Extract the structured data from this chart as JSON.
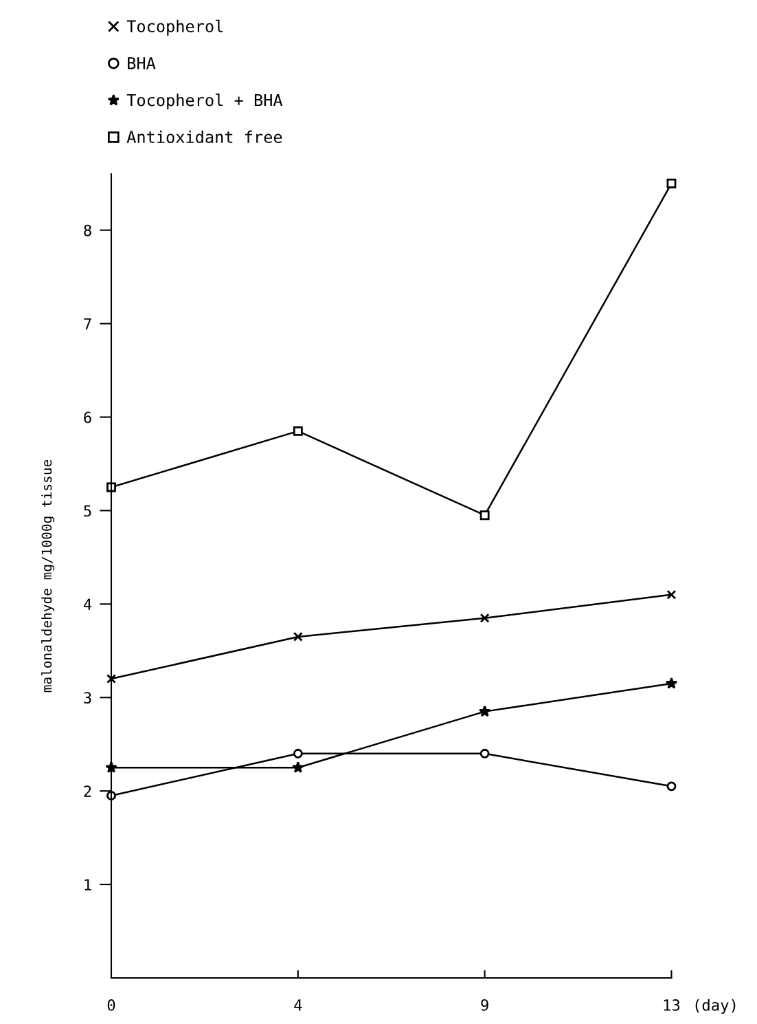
{
  "chart_data": {
    "type": "line",
    "ylabel": "malonaldehyde mg/1000g tissue",
    "xlabel": "(day)",
    "categories": [
      "0",
      "4",
      "9",
      "13"
    ],
    "series": [
      {
        "name": "Tocopherol",
        "color": "#000000",
        "marker": "cross",
        "values": [
          3.2,
          3.65,
          3.85,
          4.1
        ]
      },
      {
        "name": "BHA",
        "color": "#000000",
        "marker": "circle",
        "values": [
          1.95,
          2.4,
          2.4,
          2.05
        ]
      },
      {
        "name": "Tocopherol + BHA",
        "color": "#000000",
        "marker": "star",
        "values": [
          2.25,
          2.25,
          2.85,
          3.15
        ]
      },
      {
        "name": "Antioxidant free",
        "color": "#000000",
        "marker": "square",
        "values": [
          5.25,
          5.85,
          4.95,
          8.5
        ]
      }
    ],
    "ylim": [
      0,
      8.6
    ],
    "yticks": [
      1,
      2,
      3,
      4,
      5,
      6,
      7,
      8
    ],
    "grid": false,
    "legend": "top left",
    "line_style": "solid"
  }
}
